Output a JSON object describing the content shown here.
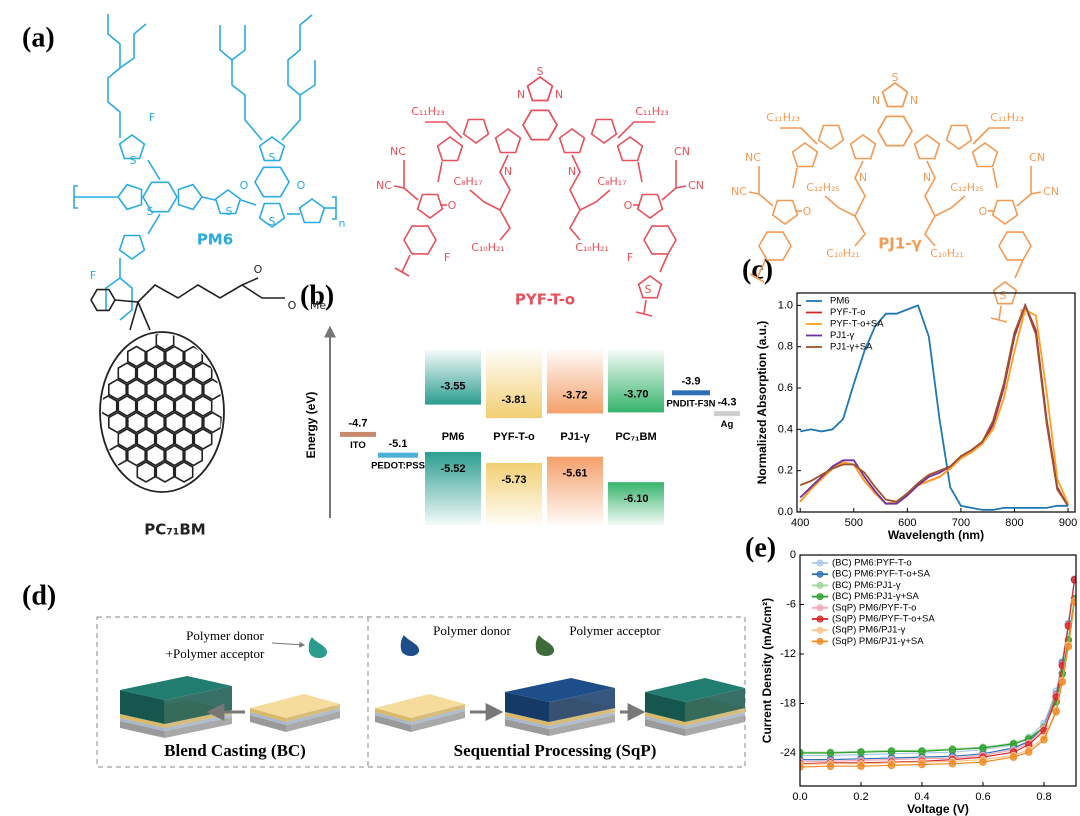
{
  "panel_labels": [
    "(a)",
    "(b)",
    "(c)",
    "(d)",
    "(e)"
  ],
  "structures": [
    {
      "name": "PM6",
      "color": "#29abe2",
      "labels": [
        "F",
        "S",
        "S",
        "S",
        "S",
        "O",
        "O",
        "S",
        "F",
        "n"
      ]
    },
    {
      "name": "PC₇₁BM",
      "color": "#222222",
      "labels": [
        "O",
        "O",
        "Me"
      ]
    },
    {
      "name": "PYF-T-o",
      "color": "#e8505b",
      "labels": [
        "S",
        "N",
        "N",
        "C₁₁H₂₃",
        "C₁₁H₂₃",
        "N",
        "N",
        "C₈H₁₇",
        "C₈H₁₇",
        "C₁₀H₂₁",
        "C₁₀H₂₁",
        "NC",
        "NC",
        "CN",
        "CN",
        "O",
        "O",
        "F",
        "F",
        "S"
      ]
    },
    {
      "name": "PJ1-γ",
      "color": "#f39a54",
      "labels": [
        "S",
        "N",
        "N",
        "C₁₁H₂₃",
        "C₁₁H₂₃",
        "N",
        "N",
        "C₁₂H₂₅",
        "C₁₂H₂₅",
        "C₁₀H₂₁",
        "C₁₀H₂₁",
        "NC",
        "NC",
        "CN",
        "CN",
        "O",
        "O",
        "S",
        "n"
      ]
    }
  ],
  "energy": {
    "axis_label": "Energy (eV)",
    "levels": [
      {
        "name": "ITO",
        "value": "-4.7",
        "color": "#c98b6b"
      },
      {
        "name": "PEDOT:PSS",
        "value": "-5.1",
        "color": "#4ab0d9"
      },
      {
        "name": "PNDIT-F3N",
        "value": "-3.9",
        "color": "#2e6fb7"
      },
      {
        "name": "Ag",
        "value": "-4.3",
        "color": "#cfcfcf"
      }
    ],
    "materials": [
      {
        "name": "PM6",
        "lumo": "-3.55",
        "homo": "-5.52",
        "color": "#2a9d8f"
      },
      {
        "name": "PYF-T-o",
        "lumo": "-3.81",
        "homo": "-5.73",
        "color": "#f2cf73"
      },
      {
        "name": "PJ1-γ",
        "lumo": "-3.72",
        "homo": "-5.61",
        "color": "#f4a06a"
      },
      {
        "name": "PC₇₁BM",
        "lumo": "-3.70",
        "homo": "-6.10",
        "color": "#35b36b"
      }
    ]
  },
  "process": {
    "bc_droplet_label": [
      "Polymer donor",
      "+Polymer acceptor"
    ],
    "bc_caption": "Blend Casting (BC)",
    "sqp_donor_label": "Polymer donor",
    "sqp_acceptor_label": "Polymer acceptor",
    "sqp_caption": "Sequential Processing (SqP)"
  },
  "chart_data": [
    {
      "type": "line",
      "xlabel": "Wavelength (nm)",
      "ylabel": "Normalized Absorption (a.u.)",
      "legend": "upper left",
      "x": [
        400,
        420,
        440,
        460,
        480,
        500,
        520,
        540,
        560,
        580,
        600,
        620,
        640,
        660,
        680,
        700,
        720,
        740,
        760,
        780,
        800,
        820,
        840,
        860,
        880,
        900
      ],
      "xlim": [
        394,
        913
      ],
      "xticks": [
        400,
        500,
        600,
        700,
        800,
        900
      ],
      "ylim": [
        0,
        1.06
      ],
      "yticks": [
        {
          "value": 0,
          "label": "0.0"
        },
        0.2,
        0.4,
        0.6,
        0.8,
        {
          "value": 1,
          "label": "1.0"
        }
      ],
      "series": [
        {
          "name": "PM6",
          "color": "#1f77b4",
          "values": [
            0.39,
            0.4,
            0.39,
            0.4,
            0.45,
            0.62,
            0.78,
            0.9,
            0.96,
            0.96,
            0.98,
            1.0,
            0.85,
            0.45,
            0.12,
            0.03,
            0.02,
            0.01,
            0.01,
            0.02,
            0.02,
            0.02,
            0.02,
            0.02,
            0.03,
            0.03
          ]
        },
        {
          "name": "PYF-T-o",
          "color": "#d62728",
          "values": [
            0.05,
            0.11,
            0.16,
            0.21,
            0.24,
            0.23,
            0.15,
            0.09,
            0.04,
            0.05,
            0.09,
            0.13,
            0.15,
            0.17,
            0.21,
            0.26,
            0.29,
            0.33,
            0.42,
            0.6,
            0.85,
            1.0,
            0.88,
            0.45,
            0.12,
            0.03
          ]
        },
        {
          "name": "PYF-T-o+SA",
          "color": "#ff9f1c",
          "values": [
            0.05,
            0.11,
            0.16,
            0.21,
            0.24,
            0.23,
            0.15,
            0.09,
            0.04,
            0.05,
            0.09,
            0.13,
            0.15,
            0.17,
            0.21,
            0.26,
            0.29,
            0.33,
            0.4,
            0.55,
            0.78,
            0.98,
            0.95,
            0.58,
            0.16,
            0.04
          ]
        },
        {
          "name": "PJ1-γ",
          "color": "#7030a0",
          "values": [
            0.07,
            0.12,
            0.17,
            0.22,
            0.25,
            0.25,
            0.17,
            0.1,
            0.04,
            0.04,
            0.08,
            0.13,
            0.17,
            0.19,
            0.22,
            0.27,
            0.3,
            0.34,
            0.43,
            0.61,
            0.86,
            1.0,
            0.87,
            0.44,
            0.11,
            0.03
          ]
        },
        {
          "name": "PJ1-γ+SA",
          "color": "#a0522d",
          "values": [
            0.13,
            0.15,
            0.18,
            0.21,
            0.23,
            0.23,
            0.19,
            0.12,
            0.06,
            0.05,
            0.09,
            0.14,
            0.18,
            0.2,
            0.22,
            0.27,
            0.3,
            0.34,
            0.44,
            0.62,
            0.87,
            1.0,
            0.86,
            0.43,
            0.11,
            0.03
          ]
        }
      ]
    },
    {
      "type": "line",
      "markers": true,
      "xlabel": "Voltage (V)",
      "ylabel": "Current Density (mA/cm²)",
      "legend": "upper left",
      "x": [
        0,
        0.1,
        0.2,
        0.3,
        0.4,
        0.5,
        0.6,
        0.7,
        0.75,
        0.8,
        0.84,
        0.86,
        0.88,
        0.9
      ],
      "xlim": [
        0,
        0.905
      ],
      "xticks": [
        {
          "value": 0,
          "label": "0.0"
        },
        0.2,
        0.4,
        0.6,
        0.8
      ],
      "ylim": [
        -28,
        0
      ],
      "yticks": [
        0,
        -6,
        -12,
        -18,
        -24
      ],
      "series": [
        {
          "name": "(BC) PM6:PYF-T-o",
          "color": "#a9c8e8",
          "values": [
            -24.3,
            -24.3,
            -24.2,
            -24.1,
            -24.0,
            -23.9,
            -23.6,
            -23.0,
            -22.1,
            -20.4,
            -16.5,
            -12.9,
            -8.3,
            -2.9
          ]
        },
        {
          "name": "(BC) PM6:PYF-T-o+SA",
          "color": "#2e6fb7",
          "values": [
            -24.8,
            -24.8,
            -24.7,
            -24.6,
            -24.5,
            -24.4,
            -24.1,
            -23.4,
            -22.6,
            -20.8,
            -16.9,
            -13.1,
            -8.4,
            -3.0
          ]
        },
        {
          "name": "(BC) PM6:PJ1-γ",
          "color": "#9fd69a",
          "values": [
            -23.9,
            -23.9,
            -23.8,
            -23.7,
            -23.7,
            -23.5,
            -23.3,
            -22.8,
            -22.2,
            -20.8,
            -17.7,
            -14.3,
            -10.3,
            -5.3
          ]
        },
        {
          "name": "(BC) PM6:PJ1-γ+SA",
          "color": "#2ca02c",
          "values": [
            -24.0,
            -24.0,
            -23.9,
            -23.8,
            -23.8,
            -23.6,
            -23.4,
            -22.9,
            -22.3,
            -20.9,
            -17.8,
            -14.4,
            -10.3,
            -5.3
          ]
        },
        {
          "name": "(SqP) PM6/PYF-T-o",
          "color": "#f4a6b5",
          "values": [
            -25.0,
            -25.0,
            -24.9,
            -24.8,
            -24.7,
            -24.6,
            -24.3,
            -23.6,
            -22.8,
            -21.0,
            -17.0,
            -13.3,
            -8.5,
            -3.0
          ]
        },
        {
          "name": "(SqP) PM6/PYF-T-o+SA",
          "color": "#d62728",
          "values": [
            -25.3,
            -25.2,
            -25.2,
            -25.1,
            -25.0,
            -24.8,
            -24.5,
            -23.9,
            -23.0,
            -21.3,
            -17.2,
            -13.4,
            -8.6,
            -3.0
          ]
        },
        {
          "name": "(SqP) PM6/PJ1-γ",
          "color": "#f9c48a",
          "values": [
            -25.4,
            -25.3,
            -25.3,
            -25.2,
            -25.1,
            -25.0,
            -24.8,
            -24.3,
            -23.6,
            -22.1,
            -18.8,
            -15.2,
            -10.9,
            -5.6
          ]
        },
        {
          "name": "(SqP) PM6/PJ1-γ+SA",
          "color": "#f08a24",
          "values": [
            -25.7,
            -25.6,
            -25.6,
            -25.5,
            -25.4,
            -25.3,
            -25.1,
            -24.5,
            -23.9,
            -22.4,
            -19.0,
            -15.4,
            -11.1,
            -5.7
          ]
        }
      ]
    }
  ]
}
